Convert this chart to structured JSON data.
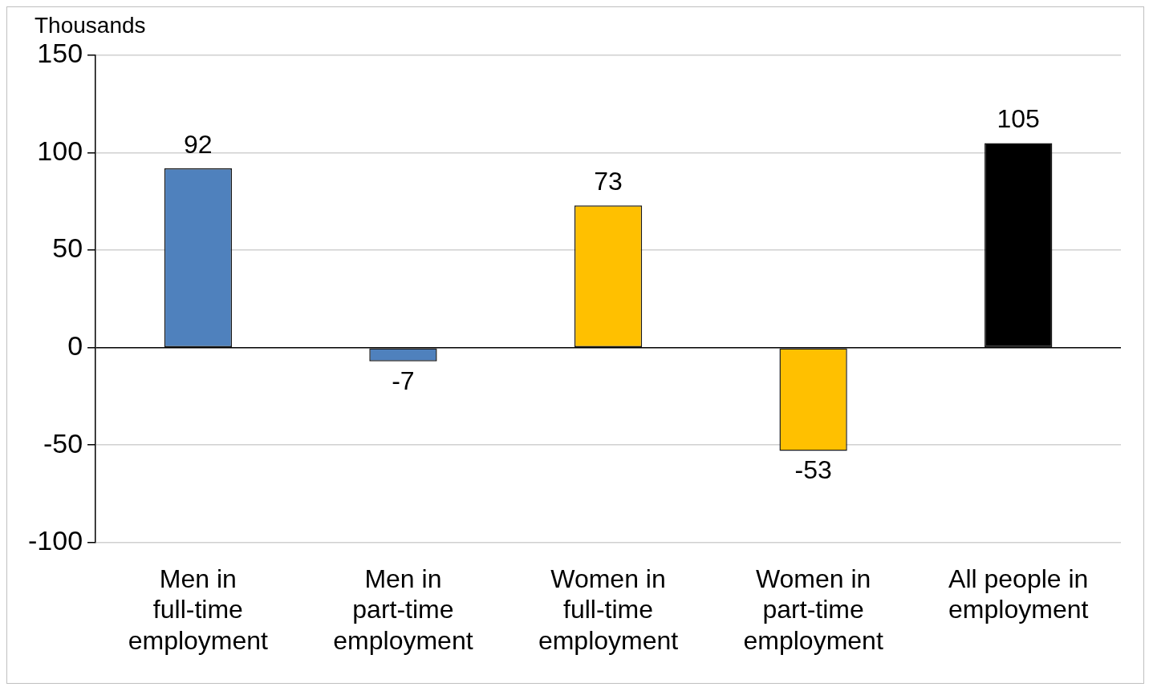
{
  "chart_data": {
    "type": "bar",
    "ylabel": "Thousands",
    "categories": [
      "Men in full-time employment",
      "Men in part-time employment",
      "Women in full-time employment",
      "Women in part-time employment",
      "All people in employment"
    ],
    "values": [
      92,
      -7,
      73,
      -53,
      105
    ],
    "colors": [
      "#4f81bd",
      "#4f81bd",
      "#ffc000",
      "#ffc000",
      "#000000"
    ],
    "ylim": [
      -100,
      150
    ],
    "yticks": [
      -100,
      -50,
      0,
      50,
      100,
      150
    ],
    "grid": "y",
    "data_labels": true,
    "legend": false
  }
}
